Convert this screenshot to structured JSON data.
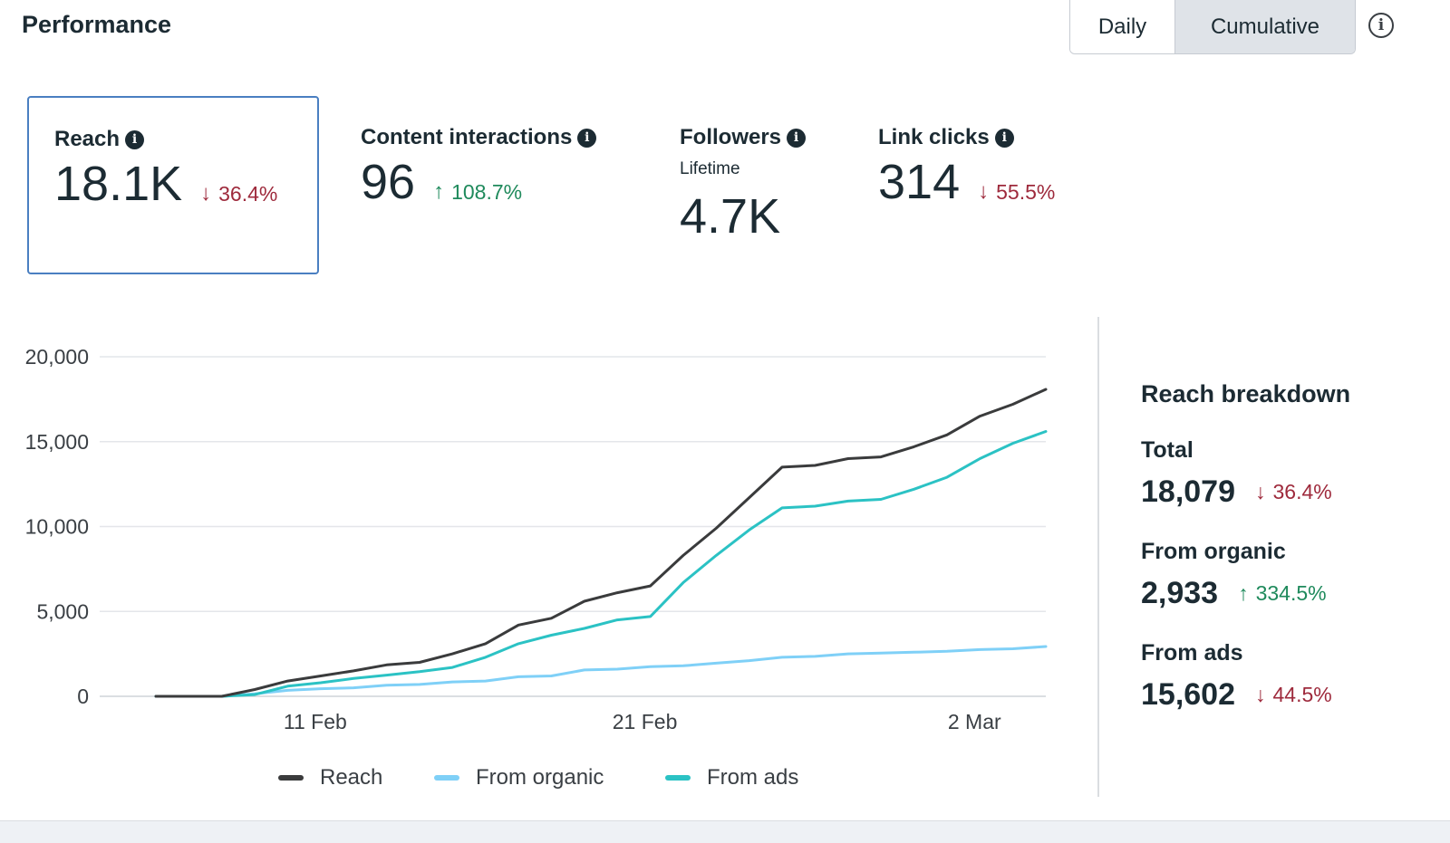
{
  "header": {
    "title": "Performance",
    "toggle": {
      "daily_label": "Daily",
      "cumulative_label": "Cumulative",
      "selected": "Cumulative"
    },
    "info_icon": "info-circle-icon"
  },
  "metrics": [
    {
      "label": "Reach",
      "value": "18.1K",
      "delta": "36.4%",
      "direction": "down",
      "selected": true
    },
    {
      "label": "Content interactions",
      "value": "96",
      "delta": "108.7%",
      "direction": "up"
    },
    {
      "label": "Followers",
      "sublabel": "Lifetime",
      "value": "4.7K"
    },
    {
      "label": "Link clicks",
      "value": "314",
      "delta": "55.5%",
      "direction": "down"
    }
  ],
  "chart_data": {
    "type": "line",
    "title": "",
    "xlabel": "",
    "ylabel": "",
    "ylim": [
      0,
      20000
    ],
    "yticks": [
      "20,000",
      "15,000",
      "10,000",
      "5,000",
      "0"
    ],
    "xtick_labels": [
      {
        "label": "11 Feb",
        "index": 5
      },
      {
        "label": "21 Feb",
        "index": 15
      },
      {
        "label": "2 Mar",
        "index": 25
      }
    ],
    "grid": true,
    "legend_position": "bottom",
    "x_dates": [
      "6 Feb",
      "7 Feb",
      "8 Feb",
      "9 Feb",
      "10 Feb",
      "11 Feb",
      "12 Feb",
      "13 Feb",
      "14 Feb",
      "15 Feb",
      "16 Feb",
      "17 Feb",
      "18 Feb",
      "19 Feb",
      "20 Feb",
      "21 Feb",
      "22 Feb",
      "23 Feb",
      "24 Feb",
      "25 Feb",
      "26 Feb",
      "27 Feb",
      "28 Feb",
      "1 Mar",
      "2 Mar",
      "3 Mar",
      "4 Mar",
      "5 Mar"
    ],
    "series": [
      {
        "name": "Reach",
        "color": "#3a3b3c",
        "values": [
          0,
          0,
          0,
          400,
          900,
          1200,
          1500,
          1850,
          2000,
          2500,
          3100,
          4200,
          4600,
          5600,
          6100,
          6500,
          8300,
          9900,
          11700,
          13500,
          13600,
          14000,
          14100,
          14700,
          15400,
          16500,
          17200,
          18079
        ]
      },
      {
        "name": "From organic",
        "color": "#7fd0f7",
        "values": [
          0,
          0,
          0,
          150,
          350,
          450,
          500,
          650,
          700,
          850,
          900,
          1150,
          1200,
          1550,
          1600,
          1750,
          1800,
          1950,
          2100,
          2300,
          2350,
          2500,
          2550,
          2600,
          2650,
          2750,
          2800,
          2933
        ]
      },
      {
        "name": "From ads",
        "color": "#2bc2c4",
        "values": [
          0,
          0,
          0,
          100,
          600,
          800,
          1050,
          1250,
          1450,
          1700,
          2300,
          3100,
          3600,
          4000,
          4500,
          4700,
          6700,
          8300,
          9800,
          11100,
          11200,
          11500,
          11600,
          12200,
          12900,
          14000,
          14900,
          15602
        ]
      }
    ]
  },
  "breakdown": {
    "title": "Reach breakdown",
    "items": [
      {
        "label": "Total",
        "value": "18,079",
        "delta": "36.4%",
        "direction": "down"
      },
      {
        "label": "From organic",
        "value": "2,933",
        "delta": "334.5%",
        "direction": "up"
      },
      {
        "label": "From ads",
        "value": "15,602",
        "delta": "44.5%",
        "direction": "down"
      }
    ]
  },
  "colors": {
    "down": "#9e2a3c",
    "up": "#1f8a5c",
    "selected_border": "#4a7fc1"
  }
}
